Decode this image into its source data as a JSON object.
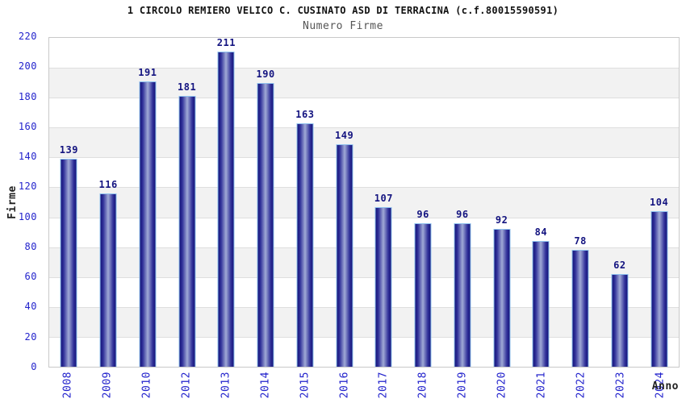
{
  "chart": {
    "title": "1 CIRCOLO REMIERO VELICO C. CUSINATO ASD DI TERRACINA (c.f.80015590591)",
    "subtitle": "Numero Firme",
    "ylabel": "Firme",
    "xlabel": "Anno"
  },
  "chart_data": {
    "type": "bar",
    "title": "1 CIRCOLO REMIERO VELICO C. CUSINATO ASD DI TERRACINA (c.f.80015590591)",
    "subtitle": "Numero Firme",
    "categories": [
      "2008",
      "2009",
      "2010",
      "2012",
      "2013",
      "2014",
      "2015",
      "2016",
      "2017",
      "2018",
      "2019",
      "2020",
      "2021",
      "2022",
      "2023",
      "2024"
    ],
    "values": [
      139,
      116,
      191,
      181,
      211,
      190,
      163,
      149,
      107,
      96,
      96,
      92,
      84,
      78,
      62,
      104
    ],
    "xlabel": "Anno",
    "ylabel": "Firme",
    "ylim": [
      0,
      220
    ],
    "yticks": [
      0,
      20,
      40,
      60,
      80,
      100,
      120,
      140,
      160,
      180,
      200,
      220
    ],
    "grid": true,
    "legend": "none",
    "colors": {
      "bar_edge": "#14147a",
      "bar_mid_dark": "#32329a",
      "bar_center": "#a0aad6",
      "bar_border": "#8fc1ee",
      "value_label": "#141480",
      "tick_label": "#2222cc",
      "band_fill": "#f2f2f2",
      "band_alt": "#ffffff",
      "gridline": "#dedede",
      "frame": "#c9c9c9",
      "subtitle": "#555555",
      "axis_title": "#222222"
    }
  }
}
